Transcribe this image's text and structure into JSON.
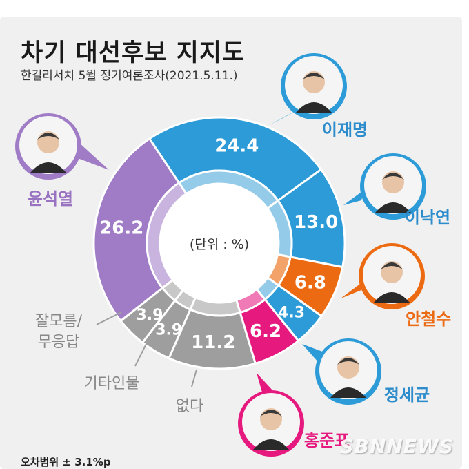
{
  "header": {
    "title": "차기 대선후보 지지도",
    "subtitle": "한길리서치 5월 정기여론조사(2021.5.11.)"
  },
  "footer": {
    "note": "오차범위 ± 3.1%p",
    "watermark": "SBNNEWS"
  },
  "chart_data": {
    "type": "pie",
    "center_label": "(단위 : %)",
    "categories": [
      "이재명",
      "이낙연",
      "안철수",
      "정세균",
      "홍준표",
      "없다",
      "기타인물",
      "잘모름/무응답",
      "윤석열"
    ],
    "values": [
      24.4,
      13.0,
      6.8,
      4.3,
      6.2,
      11.2,
      3.9,
      3.9,
      26.2
    ],
    "value_labels": [
      "24.4",
      "13.0",
      "6.8",
      "4.3",
      "6.2",
      "11.2",
      "3.9",
      "3.9",
      "26.2"
    ],
    "colors": [
      "#2d9bd7",
      "#2d9bd7",
      "#ec6a12",
      "#2d9bd7",
      "#e5197e",
      "#9e9e9e",
      "#9e9e9e",
      "#9e9e9e",
      "#a07cc6"
    ],
    "inner_colors": [
      "#93cbe9",
      "#93cbe9",
      "#f3a36a",
      "#93cbe9",
      "#f07ab5",
      "#c8c8c8",
      "#c8c8c8",
      "#c8c8c8",
      "#c9b4e0"
    ],
    "label_colors": [
      "#2d8ccc",
      "#2d8ccc",
      "#ec6a12",
      "#2d8ccc",
      "#e5197e",
      "#888888",
      "#888888",
      "#888888",
      "#9a72c2"
    ],
    "photo_icons": [
      "person-portrait-icon",
      "person-portrait-icon",
      "person-portrait-icon",
      "person-portrait-icon",
      "person-portrait-icon",
      "",
      "",
      "",
      "person-portrait-icon"
    ]
  }
}
